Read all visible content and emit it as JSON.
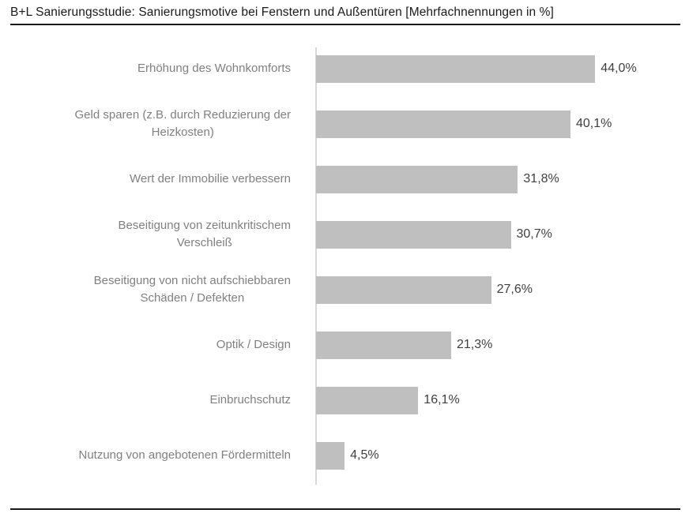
{
  "header": {
    "title": "B+L Sanierungsstudie: Sanierungsmotive bei Fenstern und Außentüren [Mehrfachnennungen in %]"
  },
  "chart_data": {
    "type": "bar",
    "orientation": "horizontal",
    "title": "B+L Sanierungsstudie: Sanierungsmotive bei Fenstern und Außentüren [Mehrfachnennungen in %]",
    "categories": [
      "Erhöhung des Wohnkomforts",
      "Geld sparen (z.B. durch Reduzierung der Heizkosten)",
      "Wert der Immobilie verbessern",
      "Beseitigung von zeitunkritischem Verschleiß",
      "Beseitigung von nicht aufschiebbaren Schäden / Defekten",
      "Optik / Design",
      "Einbruchschutz",
      "Nutzung von angebotenen Fördermitteln"
    ],
    "category_lines": [
      [
        "Erhöhung des Wohnkomforts"
      ],
      [
        "Geld sparen (z.B. durch Reduzierung der",
        "Heizkosten)"
      ],
      [
        "Wert der Immobilie verbessern"
      ],
      [
        "Beseitigung von zeitunkritischem",
        "Verschleiß"
      ],
      [
        "Beseitigung von nicht aufschiebbaren",
        "Schäden / Defekten"
      ],
      [
        "Optik / Design"
      ],
      [
        "Einbruchschutz"
      ],
      [
        "Nutzung von angebotenen Fördermitteln"
      ]
    ],
    "values": [
      44.0,
      40.1,
      31.8,
      30.7,
      27.6,
      21.3,
      16.1,
      4.5
    ],
    "value_labels": [
      "44,0%",
      "40,1%",
      "31,8%",
      "30,7%",
      "27,6%",
      "21,3%",
      "16,1%",
      "4,5%"
    ],
    "xlabel": "",
    "ylabel": "",
    "xlim": [
      0,
      50
    ],
    "unit": "%",
    "decimal_separator": ",",
    "data_labels": true,
    "gridlines": false,
    "legend": false,
    "bar_color": "#bfbfbf",
    "category_label_color": "#808080",
    "value_label_color": "#404040",
    "axis_line_color": "#d9d9d9",
    "rule_color": "#1a1a1a"
  }
}
